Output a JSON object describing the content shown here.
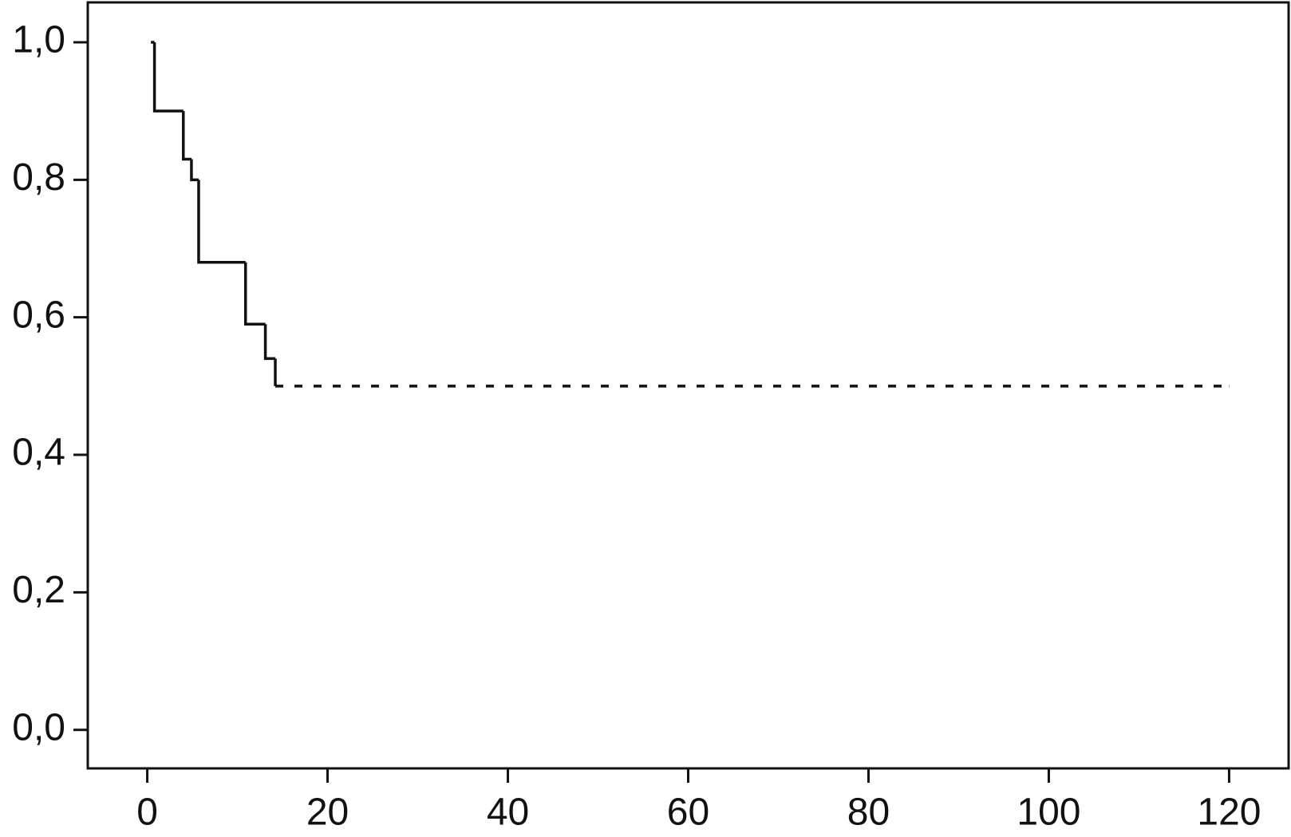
{
  "chart_data": {
    "type": "step",
    "series": [
      {
        "color": "#111111",
        "dash": false,
        "x": [
          0.4,
          0.8,
          4.0,
          4.9,
          5.7,
          10.9,
          13.1,
          14.2
        ],
        "values": [
          1.0,
          0.9,
          0.83,
          0.8,
          0.68,
          0.59,
          0.54,
          0.5
        ]
      },
      {
        "color": "#111111",
        "dash": true,
        "x": [
          14.2,
          120
        ],
        "values": [
          0.5,
          0.5
        ]
      }
    ],
    "xlim": [
      -6.6,
      126.6
    ],
    "ylim": [
      -0.056,
      1.058
    ],
    "xticks": [
      0,
      20,
      40,
      60,
      80,
      100,
      120
    ],
    "yticks": [
      {
        "value": 0,
        "label": "0,0"
      },
      {
        "value": 0.2,
        "label": "0,2"
      },
      {
        "value": 0.4,
        "label": "0,4"
      },
      {
        "value": 0.6,
        "label": "0,6"
      },
      {
        "value": 0.8,
        "label": "0,8"
      },
      {
        "value": 1,
        "label": "1,0"
      }
    ],
    "grid": false
  }
}
